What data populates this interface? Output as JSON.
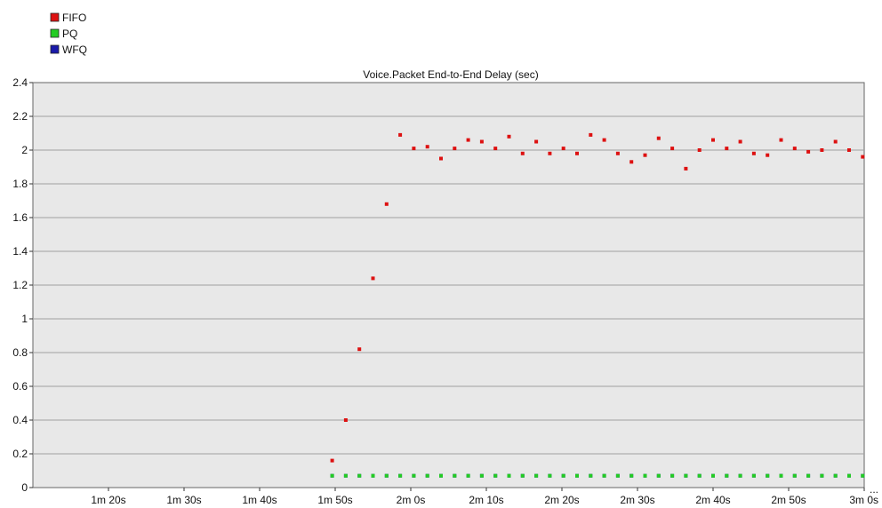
{
  "chart_data": {
    "type": "scatter",
    "title": "Voice.Packet End-to-End Delay (sec)",
    "xlabel": "",
    "ylabel": "",
    "x_unit": "seconds",
    "xlim": [
      70,
      180
    ],
    "ylim": [
      0,
      2.4
    ],
    "grid": true,
    "legend_position": "top-left",
    "plot_background": "#e8e8e8",
    "gridline_color": "#a0a0a0",
    "x_ticks": [
      {
        "value": 80,
        "label": "1m 20s"
      },
      {
        "value": 90,
        "label": "1m 30s"
      },
      {
        "value": 100,
        "label": "1m 40s"
      },
      {
        "value": 110,
        "label": "1m 50s"
      },
      {
        "value": 120,
        "label": "2m 0s"
      },
      {
        "value": 130,
        "label": "2m 10s"
      },
      {
        "value": 140,
        "label": "2m 20s"
      },
      {
        "value": 150,
        "label": "2m 30s"
      },
      {
        "value": 160,
        "label": "2m 40s"
      },
      {
        "value": 170,
        "label": "2m 50s"
      },
      {
        "value": 180,
        "label": "3m 0s"
      }
    ],
    "y_ticks": [
      {
        "value": 0,
        "label": "0"
      },
      {
        "value": 0.2,
        "label": "0.2"
      },
      {
        "value": 0.4,
        "label": "0.4"
      },
      {
        "value": 0.6,
        "label": "0.6"
      },
      {
        "value": 0.8,
        "label": "0.8"
      },
      {
        "value": 1.0,
        "label": "1"
      },
      {
        "value": 1.2,
        "label": "1.2"
      },
      {
        "value": 1.4,
        "label": "1.4"
      },
      {
        "value": 1.6,
        "label": "1.6"
      },
      {
        "value": 1.8,
        "label": "1.8"
      },
      {
        "value": 2.0,
        "label": "2"
      },
      {
        "value": 2.2,
        "label": "2.2"
      },
      {
        "value": 2.4,
        "label": "2.4"
      }
    ],
    "series": [
      {
        "name": "FIFO",
        "color": "#dd1111",
        "points": [
          [
            109.6,
            0.16
          ],
          [
            111.4,
            0.4
          ],
          [
            113.2,
            0.82
          ],
          [
            115.0,
            1.24
          ],
          [
            116.8,
            1.68
          ],
          [
            118.6,
            2.09
          ],
          [
            120.4,
            2.01
          ],
          [
            122.2,
            2.02
          ],
          [
            124.0,
            1.95
          ],
          [
            125.8,
            2.01
          ],
          [
            127.6,
            2.06
          ],
          [
            129.4,
            2.05
          ],
          [
            131.2,
            2.01
          ],
          [
            133.0,
            2.08
          ],
          [
            134.8,
            1.98
          ],
          [
            136.6,
            2.05
          ],
          [
            138.4,
            1.98
          ],
          [
            140.2,
            2.01
          ],
          [
            142.0,
            1.98
          ],
          [
            143.8,
            2.09
          ],
          [
            145.6,
            2.06
          ],
          [
            147.4,
            1.98
          ],
          [
            149.2,
            1.93
          ],
          [
            151.0,
            1.97
          ],
          [
            152.8,
            2.07
          ],
          [
            154.6,
            2.01
          ],
          [
            156.4,
            1.89
          ],
          [
            158.2,
            2.0
          ],
          [
            160.0,
            2.06
          ],
          [
            161.8,
            2.01
          ],
          [
            163.6,
            2.05
          ],
          [
            165.4,
            1.98
          ],
          [
            167.2,
            1.97
          ],
          [
            169.0,
            2.06
          ],
          [
            170.8,
            2.01
          ],
          [
            172.6,
            1.99
          ],
          [
            174.4,
            2.0
          ],
          [
            176.2,
            2.05
          ],
          [
            178.0,
            2.0
          ],
          [
            179.8,
            1.96
          ]
        ]
      },
      {
        "name": "PQ",
        "color": "#22cc22",
        "points": [
          [
            109.6,
            0.07
          ],
          [
            111.4,
            0.07
          ],
          [
            113.2,
            0.07
          ],
          [
            115.0,
            0.07
          ],
          [
            116.8,
            0.07
          ],
          [
            118.6,
            0.07
          ],
          [
            120.4,
            0.07
          ],
          [
            122.2,
            0.07
          ],
          [
            124.0,
            0.07
          ],
          [
            125.8,
            0.07
          ],
          [
            127.6,
            0.07
          ],
          [
            129.4,
            0.07
          ],
          [
            131.2,
            0.07
          ],
          [
            133.0,
            0.07
          ],
          [
            134.8,
            0.07
          ],
          [
            136.6,
            0.07
          ],
          [
            138.4,
            0.07
          ],
          [
            140.2,
            0.07
          ],
          [
            142.0,
            0.07
          ],
          [
            143.8,
            0.07
          ],
          [
            145.6,
            0.07
          ],
          [
            147.4,
            0.07
          ],
          [
            149.2,
            0.07
          ],
          [
            151.0,
            0.07
          ],
          [
            152.8,
            0.07
          ],
          [
            154.6,
            0.07
          ],
          [
            156.4,
            0.07
          ],
          [
            158.2,
            0.07
          ],
          [
            160.0,
            0.07
          ],
          [
            161.8,
            0.07
          ],
          [
            163.6,
            0.07
          ],
          [
            165.4,
            0.07
          ],
          [
            167.2,
            0.07
          ],
          [
            169.0,
            0.07
          ],
          [
            170.8,
            0.07
          ],
          [
            172.6,
            0.07
          ],
          [
            174.4,
            0.07
          ],
          [
            176.2,
            0.07
          ],
          [
            178.0,
            0.07
          ],
          [
            179.8,
            0.07
          ]
        ]
      },
      {
        "name": "WFQ",
        "color": "#1a1aaa",
        "points": [
          [
            109.6,
            0.07
          ],
          [
            111.4,
            0.07
          ],
          [
            113.2,
            0.07
          ],
          [
            115.0,
            0.07
          ],
          [
            116.8,
            0.07
          ],
          [
            118.6,
            0.07
          ],
          [
            120.4,
            0.07
          ],
          [
            122.2,
            0.07
          ],
          [
            124.0,
            0.07
          ],
          [
            125.8,
            0.07
          ],
          [
            127.6,
            0.07
          ],
          [
            129.4,
            0.07
          ],
          [
            131.2,
            0.07
          ],
          [
            133.0,
            0.07
          ],
          [
            134.8,
            0.07
          ],
          [
            136.6,
            0.07
          ],
          [
            138.4,
            0.07
          ],
          [
            140.2,
            0.07
          ],
          [
            142.0,
            0.07
          ],
          [
            143.8,
            0.07
          ],
          [
            145.6,
            0.07
          ],
          [
            147.4,
            0.07
          ],
          [
            149.2,
            0.07
          ],
          [
            151.0,
            0.07
          ],
          [
            152.8,
            0.07
          ],
          [
            154.6,
            0.07
          ],
          [
            156.4,
            0.07
          ],
          [
            158.2,
            0.07
          ],
          [
            160.0,
            0.07
          ],
          [
            161.8,
            0.07
          ],
          [
            163.6,
            0.07
          ],
          [
            165.4,
            0.07
          ],
          [
            167.2,
            0.07
          ],
          [
            169.0,
            0.07
          ],
          [
            170.8,
            0.07
          ],
          [
            172.6,
            0.07
          ],
          [
            174.4,
            0.07
          ],
          [
            176.2,
            0.07
          ],
          [
            178.0,
            0.07
          ],
          [
            179.8,
            0.07
          ]
        ]
      }
    ],
    "overflow_marker": "..."
  }
}
